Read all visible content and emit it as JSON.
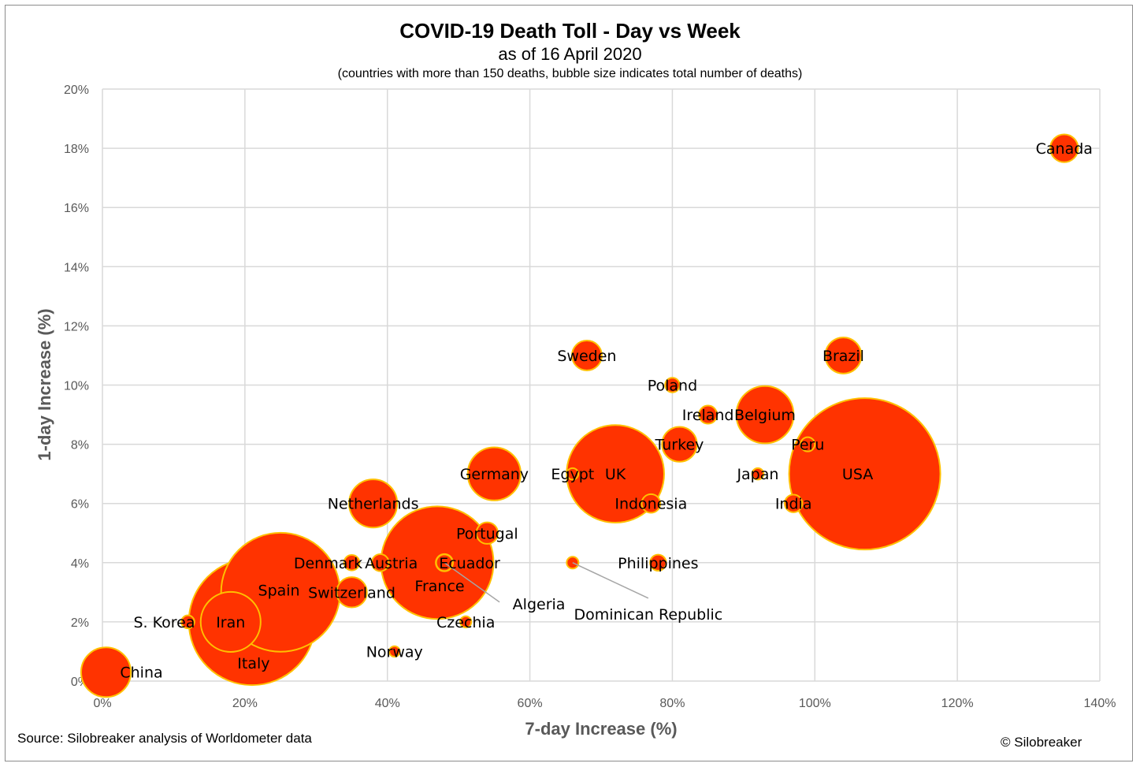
{
  "chart_data": {
    "type": "scatter",
    "title": "COVID-19 Death Toll - Day vs Week",
    "subtitle": "as of 16 April 2020",
    "note": "(countries with more than 150 deaths, bubble size indicates total number of deaths)",
    "xlabel": "7-day Increase (%)",
    "ylabel": "1-day Increase (%)",
    "xlim": [
      0,
      140
    ],
    "ylim": [
      0,
      20
    ],
    "x_ticks": [
      "0%",
      "20%",
      "40%",
      "60%",
      "80%",
      "100%",
      "120%",
      "140%"
    ],
    "y_ticks": [
      "0%",
      "2%",
      "4%",
      "6%",
      "8%",
      "10%",
      "12%",
      "14%",
      "16%",
      "18%",
      "20%"
    ],
    "grid": true,
    "colors": {
      "fill": "#ff3300",
      "stroke": "#ffc000",
      "grid": "#d9d9d9",
      "leader": "#a6a6a6"
    },
    "points": [
      {
        "name": "China",
        "x": 0.5,
        "y": 0.3,
        "size": 3342
      },
      {
        "name": "S. Korea",
        "x": 12,
        "y": 2,
        "size": 229
      },
      {
        "name": "Iran",
        "x": 18,
        "y": 2,
        "size": 4869
      },
      {
        "name": "Italy",
        "x": 21,
        "y": 2,
        "size": 21645
      },
      {
        "name": "Spain",
        "x": 25,
        "y": 3,
        "size": 19130
      },
      {
        "name": "Switzerland",
        "x": 35,
        "y": 3,
        "size": 1239
      },
      {
        "name": "Denmark",
        "x": 35,
        "y": 4,
        "size": 321
      },
      {
        "name": "Austria",
        "x": 39,
        "y": 4,
        "size": 393
      },
      {
        "name": "Netherlands",
        "x": 38,
        "y": 6,
        "size": 3134
      },
      {
        "name": "Norway",
        "x": 41,
        "y": 1,
        "size": 150
      },
      {
        "name": "France",
        "x": 47,
        "y": 4,
        "size": 17167
      },
      {
        "name": "Ecuador",
        "x": 48,
        "y": 4,
        "size": 403
      },
      {
        "name": "Algeria",
        "x": 48,
        "y": 4,
        "size": 367
      },
      {
        "name": "Czechia",
        "x": 51,
        "y": 2,
        "size": 169
      },
      {
        "name": "Portugal",
        "x": 54,
        "y": 5,
        "size": 629
      },
      {
        "name": "Germany",
        "x": 55,
        "y": 7,
        "size": 3804
      },
      {
        "name": "Dominican Republic",
        "x": 66,
        "y": 4,
        "size": 189
      },
      {
        "name": "Egypt",
        "x": 66,
        "y": 7,
        "size": 178
      },
      {
        "name": "Sweden",
        "x": 68,
        "y": 11,
        "size": 1203
      },
      {
        "name": "UK",
        "x": 72,
        "y": 7,
        "size": 12868
      },
      {
        "name": "Indonesia",
        "x": 77,
        "y": 6,
        "size": 469
      },
      {
        "name": "Philippines",
        "x": 78,
        "y": 4,
        "size": 349
      },
      {
        "name": "Poland",
        "x": 80,
        "y": 10,
        "size": 286
      },
      {
        "name": "Turkey",
        "x": 81,
        "y": 8,
        "size": 1643
      },
      {
        "name": "Ireland",
        "x": 85,
        "y": 9,
        "size": 444
      },
      {
        "name": "Japan",
        "x": 92,
        "y": 7,
        "size": 178
      },
      {
        "name": "Belgium",
        "x": 93,
        "y": 9,
        "size": 4440
      },
      {
        "name": "India",
        "x": 97,
        "y": 6,
        "size": 420
      },
      {
        "name": "Peru",
        "x": 99,
        "y": 8,
        "size": 274
      },
      {
        "name": "Brazil",
        "x": 104,
        "y": 11,
        "size": 1760
      },
      {
        "name": "USA",
        "x": 107,
        "y": 7,
        "size": 30985
      },
      {
        "name": "Canada",
        "x": 135,
        "y": 18,
        "size": 1048
      }
    ]
  },
  "footer": {
    "source": "Source: Silobreaker analysis of Worldometer data",
    "copyright": "© Silobreaker"
  }
}
